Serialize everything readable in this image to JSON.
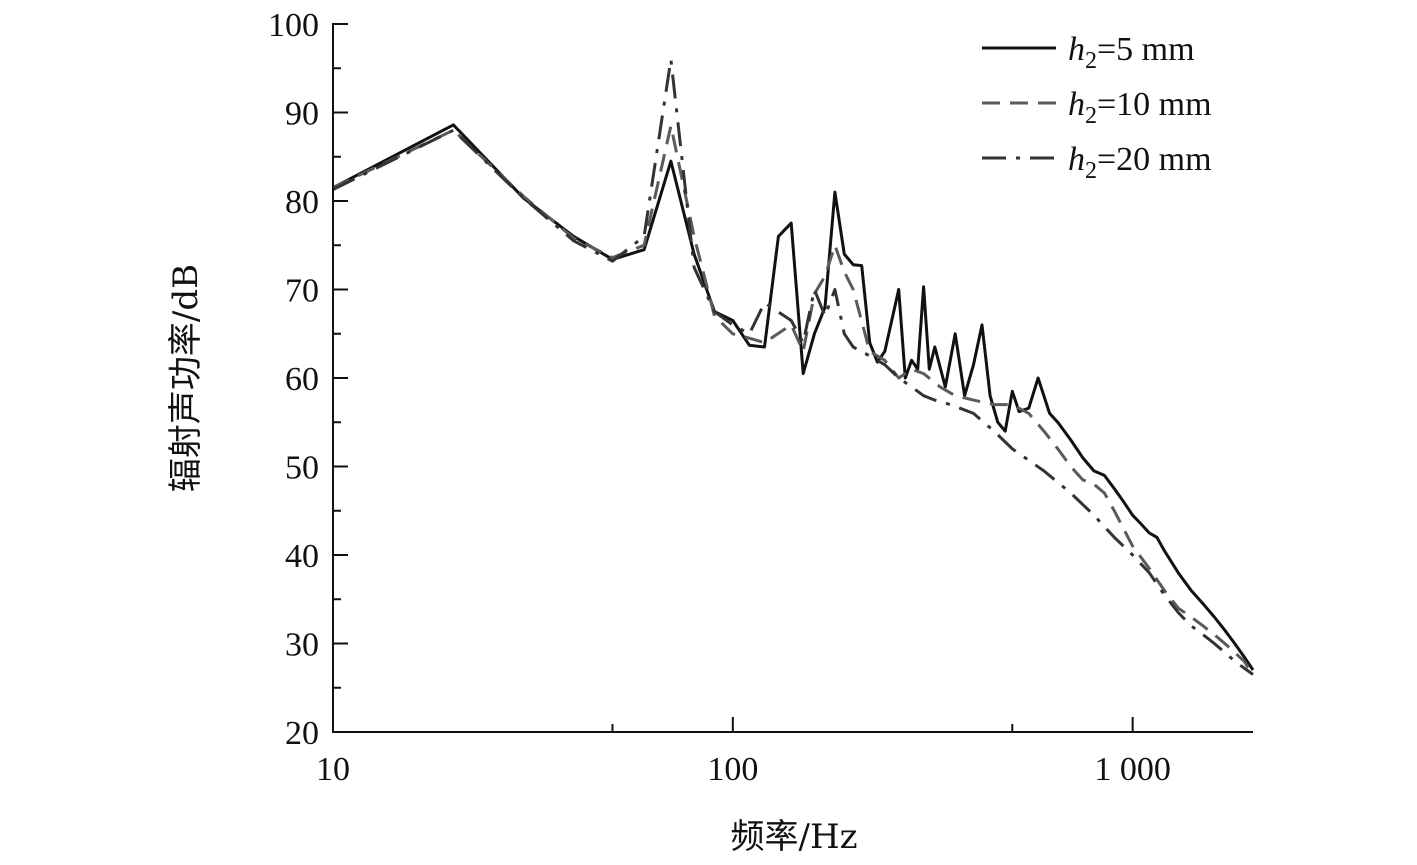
{
  "chart_data": {
    "type": "line",
    "xlabel": "频率/Hz",
    "ylabel": "辐射声功率/dB",
    "xscale": "log",
    "xlim": [
      10,
      2000
    ],
    "ylim": [
      20,
      100
    ],
    "x_ticks": [
      {
        "value": 10,
        "label": "10"
      },
      {
        "value": 100,
        "label": "100"
      },
      {
        "value": 1000,
        "label": "1 000"
      }
    ],
    "y_ticks": [
      {
        "value": 20,
        "label": "20"
      },
      {
        "value": 30,
        "label": "30"
      },
      {
        "value": 40,
        "label": "40"
      },
      {
        "value": 50,
        "label": "50"
      },
      {
        "value": 60,
        "label": "60"
      },
      {
        "value": 70,
        "label": "70"
      },
      {
        "value": 80,
        "label": "80"
      },
      {
        "value": 90,
        "label": "90"
      },
      {
        "value": 100,
        "label": "100"
      }
    ],
    "grid": false,
    "legend_position": "top-right",
    "series": [
      {
        "name": "h2=5 mm",
        "legend_italic": "h",
        "legend_sub": "2",
        "legend_rest": "=5 mm",
        "color": "#111111",
        "dash": "solid",
        "points": [
          [
            10,
            81.5
          ],
          [
            20,
            88.6
          ],
          [
            30,
            80.3
          ],
          [
            40,
            76
          ],
          [
            50,
            73.4
          ],
          [
            60,
            74.5
          ],
          [
            70,
            84.5
          ],
          [
            80,
            74
          ],
          [
            90,
            67.5
          ],
          [
            100,
            66.5
          ],
          [
            110,
            63.7
          ],
          [
            120,
            63.5
          ],
          [
            130,
            76
          ],
          [
            140,
            77.5
          ],
          [
            150,
            60.5
          ],
          [
            160,
            65
          ],
          [
            170,
            68
          ],
          [
            180,
            81
          ],
          [
            190,
            74
          ],
          [
            200,
            72.8
          ],
          [
            210,
            72.7
          ],
          [
            220,
            64
          ],
          [
            230,
            61.8
          ],
          [
            240,
            63
          ],
          [
            260,
            70
          ],
          [
            270,
            60
          ],
          [
            280,
            62
          ],
          [
            290,
            61
          ],
          [
            300,
            70.3
          ],
          [
            310,
            61
          ],
          [
            320,
            63.5
          ],
          [
            340,
            59
          ],
          [
            360,
            65
          ],
          [
            380,
            58
          ],
          [
            400,
            61.5
          ],
          [
            420,
            66
          ],
          [
            440,
            58
          ],
          [
            460,
            55
          ],
          [
            480,
            54
          ],
          [
            500,
            58.5
          ],
          [
            520,
            56.2
          ],
          [
            550,
            56.6
          ],
          [
            580,
            60
          ],
          [
            620,
            56
          ],
          [
            650,
            55
          ],
          [
            700,
            53
          ],
          [
            750,
            51
          ],
          [
            800,
            49.5
          ],
          [
            850,
            49
          ],
          [
            900,
            47.5
          ],
          [
            950,
            46
          ],
          [
            1000,
            44.5
          ],
          [
            1050,
            43.5
          ],
          [
            1100,
            42.5
          ],
          [
            1150,
            42
          ],
          [
            1200,
            40.5
          ],
          [
            1300,
            38
          ],
          [
            1400,
            36
          ],
          [
            1500,
            34.5
          ],
          [
            1600,
            33
          ],
          [
            1700,
            31.5
          ],
          [
            1800,
            30
          ],
          [
            1900,
            28.5
          ],
          [
            2000,
            27
          ]
        ]
      },
      {
        "name": "h2=10 mm",
        "legend_italic": "h",
        "legend_sub": "2",
        "legend_rest": "=10 mm",
        "color": "#5a5a5a",
        "dash": "dashed",
        "points": [
          [
            10,
            81.5
          ],
          [
            20,
            88
          ],
          [
            30,
            80.5
          ],
          [
            40,
            75.8
          ],
          [
            50,
            73.6
          ],
          [
            60,
            75
          ],
          [
            70,
            88.5
          ],
          [
            80,
            76
          ],
          [
            90,
            67
          ],
          [
            100,
            65
          ],
          [
            110,
            64.5
          ],
          [
            120,
            64
          ],
          [
            140,
            66
          ],
          [
            150,
            63
          ],
          [
            160,
            69.5
          ],
          [
            170,
            71.5
          ],
          [
            180,
            75
          ],
          [
            190,
            72
          ],
          [
            200,
            70
          ],
          [
            220,
            63
          ],
          [
            240,
            62
          ],
          [
            260,
            60
          ],
          [
            280,
            61
          ],
          [
            300,
            60.5
          ],
          [
            330,
            59
          ],
          [
            360,
            58
          ],
          [
            400,
            57.5
          ],
          [
            450,
            57
          ],
          [
            500,
            57
          ],
          [
            550,
            56
          ],
          [
            600,
            54
          ],
          [
            650,
            52
          ],
          [
            700,
            50
          ],
          [
            750,
            48.5
          ],
          [
            800,
            48
          ],
          [
            850,
            47
          ],
          [
            900,
            45
          ],
          [
            1000,
            41
          ],
          [
            1100,
            38.5
          ],
          [
            1200,
            36
          ],
          [
            1300,
            34
          ],
          [
            1400,
            33
          ],
          [
            1500,
            32
          ],
          [
            1600,
            31
          ],
          [
            1700,
            30
          ],
          [
            1800,
            29
          ],
          [
            1900,
            28
          ],
          [
            2000,
            26.5
          ]
        ]
      },
      {
        "name": "h2=20 mm",
        "legend_italic": "h",
        "legend_sub": "2",
        "legend_rest": "=20 mm",
        "color": "#333333",
        "dash": "dashdot",
        "points": [
          [
            10,
            81.3
          ],
          [
            20,
            88
          ],
          [
            30,
            80.3
          ],
          [
            40,
            75.5
          ],
          [
            50,
            73.2
          ],
          [
            60,
            76
          ],
          [
            70,
            96
          ],
          [
            80,
            72.5
          ],
          [
            90,
            67.5
          ],
          [
            100,
            66
          ],
          [
            110,
            65
          ],
          [
            120,
            68.5
          ],
          [
            140,
            66.5
          ],
          [
            150,
            64
          ],
          [
            160,
            70
          ],
          [
            170,
            67
          ],
          [
            180,
            70
          ],
          [
            190,
            65
          ],
          [
            200,
            63.5
          ],
          [
            220,
            62.5
          ],
          [
            240,
            61.5
          ],
          [
            260,
            60
          ],
          [
            280,
            59
          ],
          [
            300,
            58
          ],
          [
            320,
            57.5
          ],
          [
            350,
            57
          ],
          [
            400,
            56
          ],
          [
            450,
            54
          ],
          [
            500,
            52
          ],
          [
            600,
            49.5
          ],
          [
            700,
            47
          ],
          [
            800,
            44.5
          ],
          [
            900,
            42
          ],
          [
            1000,
            40
          ],
          [
            1100,
            38
          ],
          [
            1200,
            35.5
          ],
          [
            1300,
            33.5
          ],
          [
            1400,
            32
          ],
          [
            1500,
            31
          ],
          [
            1600,
            30
          ],
          [
            1700,
            29
          ],
          [
            1800,
            28
          ],
          [
            2000,
            26.5
          ]
        ]
      }
    ]
  }
}
